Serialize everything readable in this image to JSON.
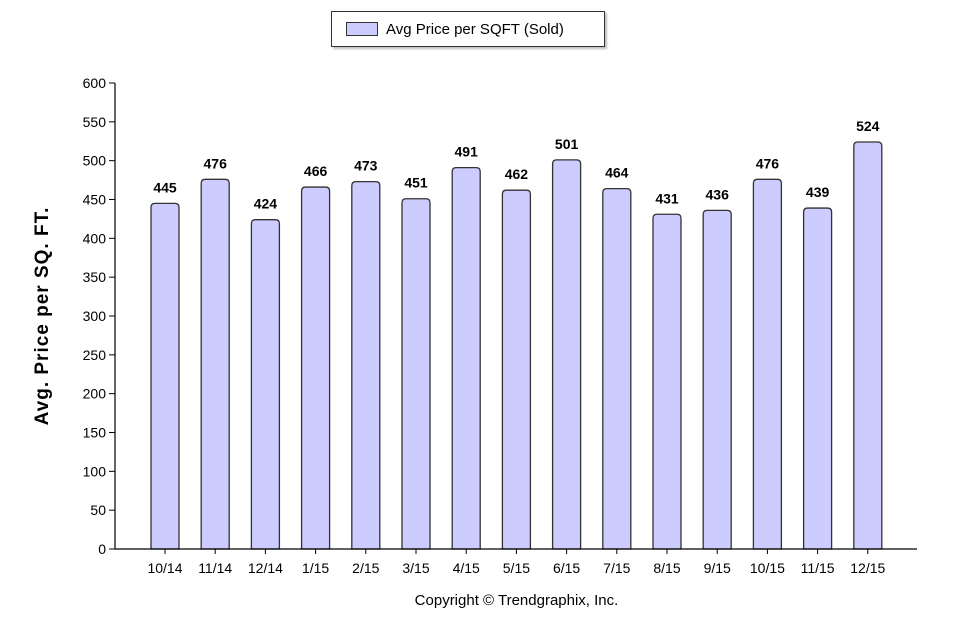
{
  "legend": {
    "label": "Avg Price per SQFT (Sold)",
    "swatch_color": "#ccccff"
  },
  "copyright": "Copyright © Trendgraphix, Inc.",
  "chart_data": {
    "type": "bar",
    "categories": [
      "10/14",
      "11/14",
      "12/14",
      "1/15",
      "2/15",
      "3/15",
      "4/15",
      "5/15",
      "6/15",
      "7/15",
      "8/15",
      "9/15",
      "10/15",
      "11/15",
      "12/15"
    ],
    "series": [
      {
        "name": "Avg Price per SQFT (Sold)",
        "values": [
          445,
          476,
          424,
          466,
          473,
          451,
          491,
          462,
          501,
          464,
          431,
          436,
          476,
          439,
          524
        ]
      }
    ],
    "title": "",
    "xlabel": "",
    "ylabel": "Avg. Price per SQ. FT.",
    "ylim": [
      0,
      600
    ],
    "yticks": [
      0,
      50,
      100,
      150,
      200,
      250,
      300,
      350,
      400,
      450,
      500,
      550,
      600
    ],
    "grid": false,
    "legend_position": "top-center",
    "data_labels": true,
    "bar_color": "#ccccff",
    "bar_edge_color": "#333333"
  }
}
